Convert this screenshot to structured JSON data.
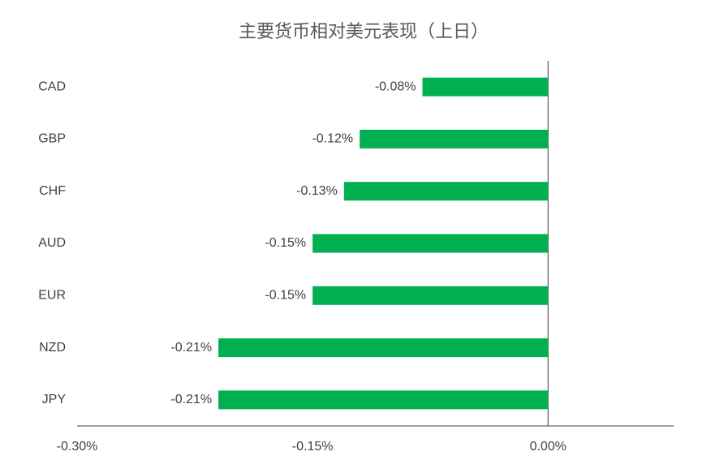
{
  "chart_data": {
    "type": "hbar",
    "title": "主要货币相对美元表现（上日）",
    "categories": [
      "CAD",
      "GBP",
      "CHF",
      "AUD",
      "EUR",
      "NZD",
      "JPY"
    ],
    "values": [
      -0.08,
      -0.12,
      -0.13,
      -0.15,
      -0.15,
      -0.21,
      -0.21
    ],
    "value_labels": [
      "-0.08%",
      "-0.12%",
      "-0.13%",
      "-0.15%",
      "-0.15%",
      "-0.21%",
      "-0.21%"
    ],
    "color": "#00b050",
    "xlim": [
      -0.3,
      0.08
    ],
    "xticks": [
      {
        "value": -0.3,
        "label": "-0.30%"
      },
      {
        "value": -0.15,
        "label": "-0.15%"
      },
      {
        "value": 0,
        "label": "0.00%"
      }
    ],
    "grid": false
  }
}
